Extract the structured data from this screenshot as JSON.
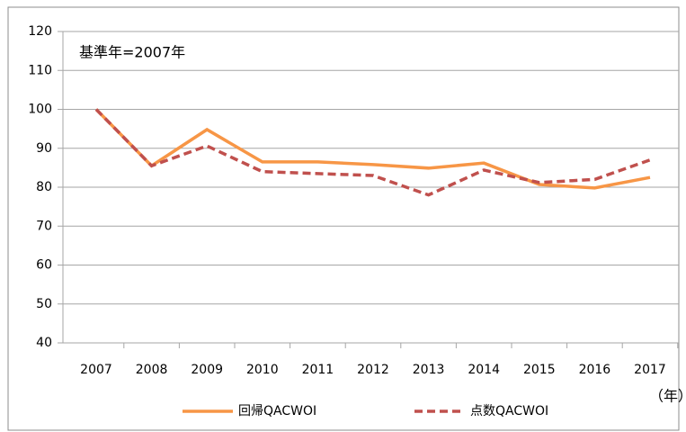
{
  "chart_data": {
    "type": "line",
    "annotation": "基準年=2007年",
    "x_unit": "（年）",
    "categories": [
      "2007",
      "2008",
      "2009",
      "2010",
      "2011",
      "2012",
      "2013",
      "2014",
      "2015",
      "2016",
      "2017"
    ],
    "series": [
      {
        "name": "回帰QACWOI",
        "color": "#f79646",
        "style": "solid",
        "values": [
          100,
          85.5,
          94.8,
          86.5,
          86.5,
          85.8,
          84.9,
          86.2,
          80.7,
          79.8,
          82.5
        ]
      },
      {
        "name": "点数QACWOI",
        "color": "#c0504d",
        "style": "dashed",
        "values": [
          100,
          85.5,
          90.6,
          84,
          83.5,
          83,
          78,
          84.4,
          81.2,
          82,
          87
        ]
      }
    ],
    "ylim": [
      40,
      120
    ],
    "yticks": [
      40,
      50,
      60,
      70,
      80,
      90,
      100,
      110,
      120
    ],
    "grid": true
  }
}
